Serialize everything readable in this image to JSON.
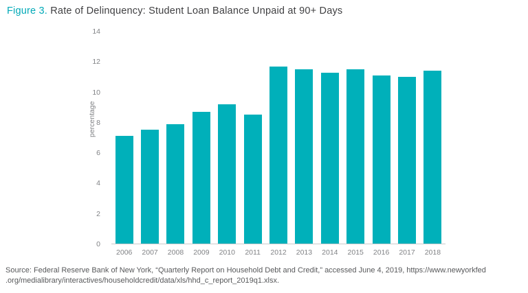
{
  "header": {
    "figure_label": "Figure 3.",
    "title": " Rate of Delinquency: Student Loan Balance Unpaid at 90+ Days"
  },
  "colors": {
    "bar": "#00b0ba",
    "accent": "#00a9b7",
    "axis_text": "#808285"
  },
  "chart_data": {
    "type": "bar",
    "categories": [
      "2006",
      "2007",
      "2008",
      "2009",
      "2010",
      "2011",
      "2012",
      "2013",
      "2014",
      "2015",
      "2016",
      "2017",
      "2018"
    ],
    "values": [
      7.1,
      7.5,
      7.9,
      8.7,
      9.2,
      8.5,
      11.7,
      11.5,
      11.3,
      11.5,
      11.1,
      11.0,
      11.4
    ],
    "title": "Figure 3. Rate of Delinquency: Student Loan Balance Unpaid at 90+ Days",
    "xlabel": "",
    "ylabel": "percentage",
    "ylim": [
      0,
      14
    ],
    "yticks": [
      0,
      2,
      4,
      6,
      8,
      10,
      12,
      14
    ],
    "grid": false,
    "legend": false
  },
  "source": {
    "line1": "Source: Federal Reserve Bank of New York, “Quarterly Report on Household Debt and Credit,” accessed June 4, 2019, https://www.newyorkfed",
    "line2": ".org/medialibrary/interactives/householdcredit/data/xls/hhd_c_report_2019q1.xlsx."
  }
}
